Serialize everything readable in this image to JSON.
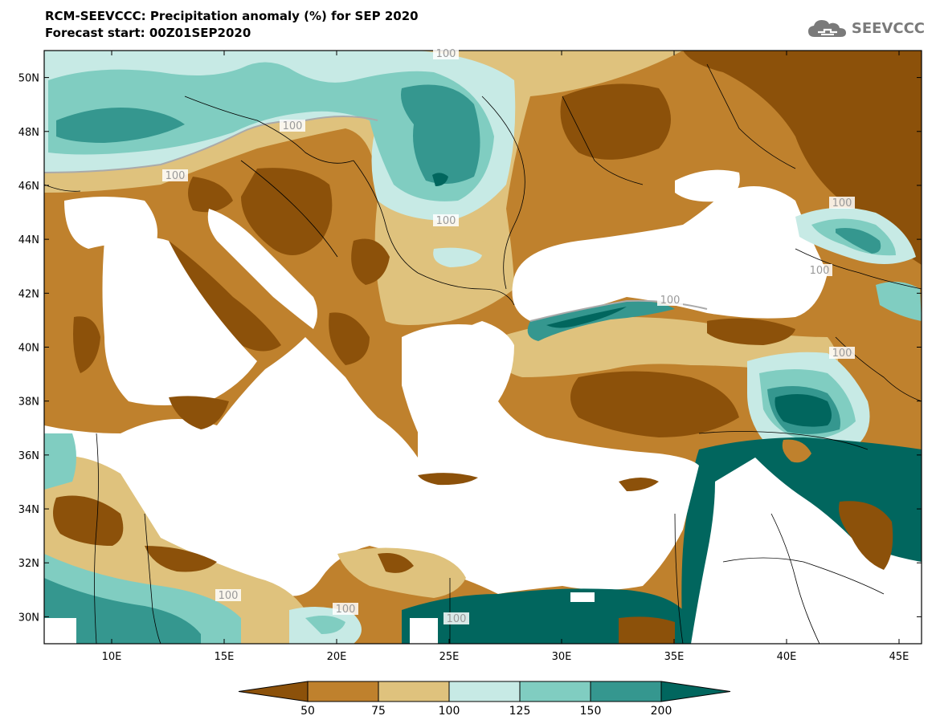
{
  "title": {
    "line1": "RCM-SEEVCCC: Precipitation anomaly (%) for SEP 2020",
    "line2": "Forecast start: 00Z01SEP2020"
  },
  "logo": {
    "text": "SEEVCCC",
    "icon": "cloud-logo-icon"
  },
  "colors": {
    "lt50": "#8c510a",
    "c50_75": "#bf812d",
    "c75_100": "#dfc27d",
    "c100_125": "#c7eae5",
    "c125_150": "#80cdc1",
    "c150_200": "#35978f",
    "gt200": "#01665e",
    "land_border": "#000000",
    "contour_line": "#aaaaaa"
  },
  "map": {
    "lon_range": [
      7,
      46
    ],
    "lat_range": [
      29,
      51
    ],
    "lon_ticks": [
      {
        "label": "10E"
      },
      {
        "label": "15E"
      },
      {
        "label": "20E"
      },
      {
        "label": "25E"
      },
      {
        "label": "30E"
      },
      {
        "label": "35E"
      },
      {
        "label": "40E"
      },
      {
        "label": "45E"
      }
    ],
    "lat_ticks": [
      {
        "label": "50N"
      },
      {
        "label": "48N"
      },
      {
        "label": "46N"
      },
      {
        "label": "44N"
      },
      {
        "label": "42N"
      },
      {
        "label": "40N"
      },
      {
        "label": "38N"
      },
      {
        "label": "36N"
      },
      {
        "label": "34N"
      },
      {
        "label": "32N"
      },
      {
        "label": "30N"
      }
    ],
    "contour_labels": [
      "100",
      "100",
      "100",
      "100",
      "100",
      "100",
      "100",
      "100",
      "100",
      "100",
      "100"
    ]
  },
  "colorbar": {
    "labels": [
      "50",
      "75",
      "100",
      "125",
      "150",
      "200"
    ]
  }
}
